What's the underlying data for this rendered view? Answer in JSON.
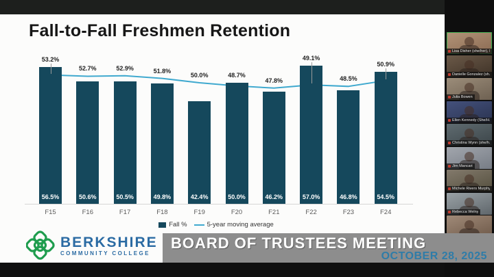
{
  "chart_data": {
    "type": "bar",
    "title": "Fall-to-Fall Freshmen Retention",
    "categories": [
      "F15",
      "F16",
      "F17",
      "F18",
      "F19",
      "F20",
      "F21",
      "F22",
      "F23",
      "F24"
    ],
    "series": [
      {
        "name": "Fall %",
        "type": "bar",
        "color": "#15485c",
        "values": [
          56.5,
          50.6,
          50.5,
          49.8,
          42.4,
          50.0,
          46.2,
          57.0,
          46.8,
          54.5
        ]
      },
      {
        "name": "5-year moving average",
        "type": "line",
        "color": "#3fa9cf",
        "values": [
          53.2,
          52.7,
          52.9,
          51.8,
          50.0,
          48.7,
          47.8,
          49.1,
          48.5,
          50.9
        ]
      }
    ],
    "ylim": [
      0,
      78
    ],
    "value_labels": true,
    "legend_position": "bottom",
    "grid": false
  },
  "slide": {
    "title": "Fall-to-Fall Freshmen Retention"
  },
  "footer": {
    "logo": {
      "name": "BERKSHIRE",
      "subtitle": "COMMUNITY COLLEGE",
      "green": "#1f9d4e",
      "blue": "#2b6ba3"
    },
    "banner": {
      "title": "BOARD OF TRUSTEES MEETING",
      "date": "OCTOBER 28, 2025",
      "bg": "#8d8d8d",
      "date_color": "#2e7ca8"
    }
  },
  "sidebar": {
    "participants": [
      {
        "name": "Lisa Disher (she/her), Ber...",
        "active": true,
        "bg": "#b39478",
        "bg2": "#8a6a52"
      },
      {
        "name": "Danielle Gonzalez (sh...",
        "active": false,
        "bg": "#6b5948",
        "bg2": "#3e3227"
      },
      {
        "name": "Julia Bowen",
        "active": false,
        "bg": "#9c8d7a",
        "bg2": "#6e6152"
      },
      {
        "name": "Ellen Kennedy (She/H...",
        "active": false,
        "bg": "#44517c",
        "bg2": "#2a3350"
      },
      {
        "name": "Christina Wynn (she/h...",
        "active": false,
        "bg": "#5f6b70",
        "bg2": "#3c4549"
      },
      {
        "name": "Jim Mancari",
        "active": false,
        "bg": "#a2a6ad",
        "bg2": "#777d86"
      },
      {
        "name": "Michele Rivers Murphy",
        "active": false,
        "bg": "#837a6c",
        "bg2": "#55503f"
      },
      {
        "name": "Rebecca Welny",
        "active": false,
        "bg": "#9aa2a6",
        "bg2": "#5f666b"
      },
      {
        "name": "",
        "active": false,
        "bg": "#a08a78",
        "bg2": "#6f5a4a"
      }
    ]
  },
  "indicators": {
    "recording_dot_color": "#8a2f1f"
  }
}
